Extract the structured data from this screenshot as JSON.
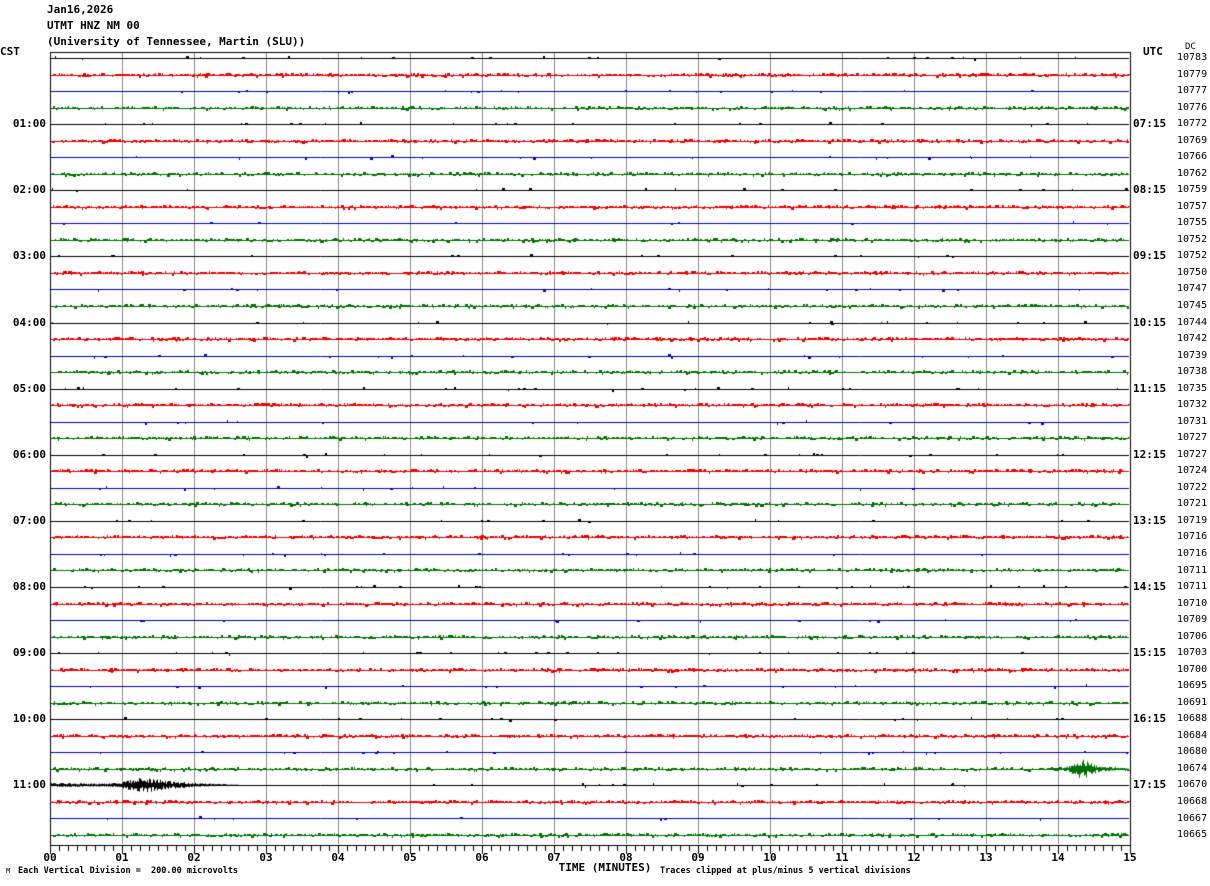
{
  "title": {
    "lines": [
      "Jan16,2026",
      "UTMT HNZ NM 00",
      "(University of Tennessee, Martin (SLU))"
    ]
  },
  "corner": {
    "left_tz_label": "CST",
    "right_tz_label": "UTC",
    "dc_label": "DC",
    "corner_glyph": "M"
  },
  "footer": {
    "x_axis_title": "TIME (MINUTES)",
    "scale_note": "Each Vertical Division =  200.00 microvolts",
    "clip_note": "Traces clipped at plus/minus 5 vertical divisions"
  },
  "chart_data": {
    "type": "line",
    "subtype": "helicorder-seismogram",
    "x_axis": {
      "label": "TIME (MINUTES)",
      "min": 0,
      "max": 15,
      "tick_labels": [
        "00",
        "01",
        "02",
        "03",
        "04",
        "05",
        "06",
        "07",
        "08",
        "09",
        "10",
        "11",
        "12",
        "13",
        "14",
        "15"
      ],
      "minor_ticks_per_minute": 8,
      "grid": true
    },
    "colors": {
      "black": "#000000",
      "red": "#ee0000",
      "blue": "#0000cc",
      "green": "#007000",
      "grid": "#8a8a8a",
      "frame": "#000000"
    },
    "noise_profiles": {
      "black": {
        "dash_density": 0.05,
        "up_prob": 0.88,
        "step": 4
      },
      "red": {
        "dash_density": 0.62,
        "up_prob": 0.8,
        "step": 2
      },
      "blue": {
        "dash_density": 0.035,
        "up_prob": 0.35,
        "step": 4
      },
      "green": {
        "dash_density": 0.52,
        "up_prob": 0.75,
        "step": 2
      }
    },
    "rows": [
      {
        "t": "00:00",
        "c": "black",
        "v": "10783",
        "l": "",
        "r": ""
      },
      {
        "t": "00:15",
        "c": "red",
        "v": "10779",
        "l": "",
        "r": ""
      },
      {
        "t": "00:30",
        "c": "blue",
        "v": "10777",
        "l": "",
        "r": ""
      },
      {
        "t": "00:45",
        "c": "green",
        "v": "10776",
        "l": "",
        "r": ""
      },
      {
        "t": "01:00",
        "c": "black",
        "v": "10772",
        "l": "01:00",
        "r": "07:15"
      },
      {
        "t": "01:15",
        "c": "red",
        "v": "10769",
        "l": "",
        "r": ""
      },
      {
        "t": "01:30",
        "c": "blue",
        "v": "10766",
        "l": "",
        "r": ""
      },
      {
        "t": "01:45",
        "c": "green",
        "v": "10762",
        "l": "",
        "r": ""
      },
      {
        "t": "02:00",
        "c": "black",
        "v": "10759",
        "l": "02:00",
        "r": "08:15"
      },
      {
        "t": "02:15",
        "c": "red",
        "v": "10757",
        "l": "",
        "r": ""
      },
      {
        "t": "02:30",
        "c": "blue",
        "v": "10755",
        "l": "",
        "r": ""
      },
      {
        "t": "02:45",
        "c": "green",
        "v": "10752",
        "l": "",
        "r": ""
      },
      {
        "t": "03:00",
        "c": "black",
        "v": "10752",
        "l": "03:00",
        "r": "09:15"
      },
      {
        "t": "03:15",
        "c": "red",
        "v": "10750",
        "l": "",
        "r": ""
      },
      {
        "t": "03:30",
        "c": "blue",
        "v": "10747",
        "l": "",
        "r": ""
      },
      {
        "t": "03:45",
        "c": "green",
        "v": "10745",
        "l": "",
        "r": ""
      },
      {
        "t": "04:00",
        "c": "black",
        "v": "10744",
        "l": "04:00",
        "r": "10:15"
      },
      {
        "t": "04:15",
        "c": "red",
        "v": "10742",
        "l": "",
        "r": ""
      },
      {
        "t": "04:30",
        "c": "blue",
        "v": "10739",
        "l": "",
        "r": ""
      },
      {
        "t": "04:45",
        "c": "green",
        "v": "10738",
        "l": "",
        "r": ""
      },
      {
        "t": "05:00",
        "c": "black",
        "v": "10735",
        "l": "05:00",
        "r": "11:15"
      },
      {
        "t": "05:15",
        "c": "red",
        "v": "10732",
        "l": "",
        "r": ""
      },
      {
        "t": "05:30",
        "c": "blue",
        "v": "10731",
        "l": "",
        "r": ""
      },
      {
        "t": "05:45",
        "c": "green",
        "v": "10727",
        "l": "",
        "r": ""
      },
      {
        "t": "06:00",
        "c": "black",
        "v": "10727",
        "l": "06:00",
        "r": "12:15"
      },
      {
        "t": "06:15",
        "c": "red",
        "v": "10724",
        "l": "",
        "r": ""
      },
      {
        "t": "06:30",
        "c": "blue",
        "v": "10722",
        "l": "",
        "r": ""
      },
      {
        "t": "06:45",
        "c": "green",
        "v": "10721",
        "l": "",
        "r": ""
      },
      {
        "t": "07:00",
        "c": "black",
        "v": "10719",
        "l": "07:00",
        "r": "13:15"
      },
      {
        "t": "07:15",
        "c": "red",
        "v": "10716",
        "l": "",
        "r": ""
      },
      {
        "t": "07:30",
        "c": "blue",
        "v": "10716",
        "l": "",
        "r": ""
      },
      {
        "t": "07:45",
        "c": "green",
        "v": "10711",
        "l": "",
        "r": ""
      },
      {
        "t": "08:00",
        "c": "black",
        "v": "10711",
        "l": "08:00",
        "r": "14:15"
      },
      {
        "t": "08:15",
        "c": "red",
        "v": "10710",
        "l": "",
        "r": ""
      },
      {
        "t": "08:30",
        "c": "blue",
        "v": "10709",
        "l": "",
        "r": ""
      },
      {
        "t": "08:45",
        "c": "green",
        "v": "10706",
        "l": "",
        "r": ""
      },
      {
        "t": "09:00",
        "c": "black",
        "v": "10703",
        "l": "09:00",
        "r": "15:15"
      },
      {
        "t": "09:15",
        "c": "red",
        "v": "10700",
        "l": "",
        "r": ""
      },
      {
        "t": "09:30",
        "c": "blue",
        "v": "10695",
        "l": "",
        "r": ""
      },
      {
        "t": "09:45",
        "c": "green",
        "v": "10691",
        "l": "",
        "r": ""
      },
      {
        "t": "10:00",
        "c": "black",
        "v": "10688",
        "l": "10:00",
        "r": "16:15"
      },
      {
        "t": "10:15",
        "c": "red",
        "v": "10684",
        "l": "",
        "r": ""
      },
      {
        "t": "10:30",
        "c": "blue",
        "v": "10680",
        "l": "",
        "r": ""
      },
      {
        "t": "10:45",
        "c": "green",
        "v": "10674",
        "l": "",
        "r": ""
      },
      {
        "t": "11:00",
        "c": "black",
        "v": "10670",
        "l": "11:00",
        "r": "17:15"
      },
      {
        "t": "11:15",
        "c": "red",
        "v": "10668",
        "l": "",
        "r": ""
      },
      {
        "t": "11:30",
        "c": "blue",
        "v": "10667",
        "l": "",
        "r": ""
      },
      {
        "t": "11:45",
        "c": "green",
        "v": "10665",
        "l": "",
        "r": ""
      }
    ],
    "events": [
      {
        "row": 43,
        "description": "green-trace burst near minute 14.3",
        "bursts": [
          {
            "t": 14.33,
            "s": 0.12,
            "a": 8.5
          },
          {
            "t": 14.6,
            "s": 0.3,
            "a": 1.8
          }
        ]
      },
      {
        "row": 44,
        "description": "black-trace event minutes 0-2.8, spindle peak near 1.3",
        "bursts": [
          {
            "t": 0.25,
            "s": 0.5,
            "a": 2.0
          },
          {
            "t": 1.3,
            "s": 0.22,
            "a": 7.0
          },
          {
            "t": 1.8,
            "s": 0.2,
            "a": 2.8
          },
          {
            "t": 2.3,
            "s": 0.18,
            "a": 1.2
          }
        ]
      },
      {
        "row": 37,
        "description": "small red-trace bursts",
        "bursts": [
          {
            "t": 7.62,
            "s": 0.09,
            "a": 1.7
          },
          {
            "t": 11.78,
            "s": 0.07,
            "a": 1.5
          }
        ]
      }
    ],
    "scale_note": "Each Vertical Division =  200.00 microvolts",
    "clip_note": "Traces clipped at plus/minus 5 vertical divisions"
  }
}
